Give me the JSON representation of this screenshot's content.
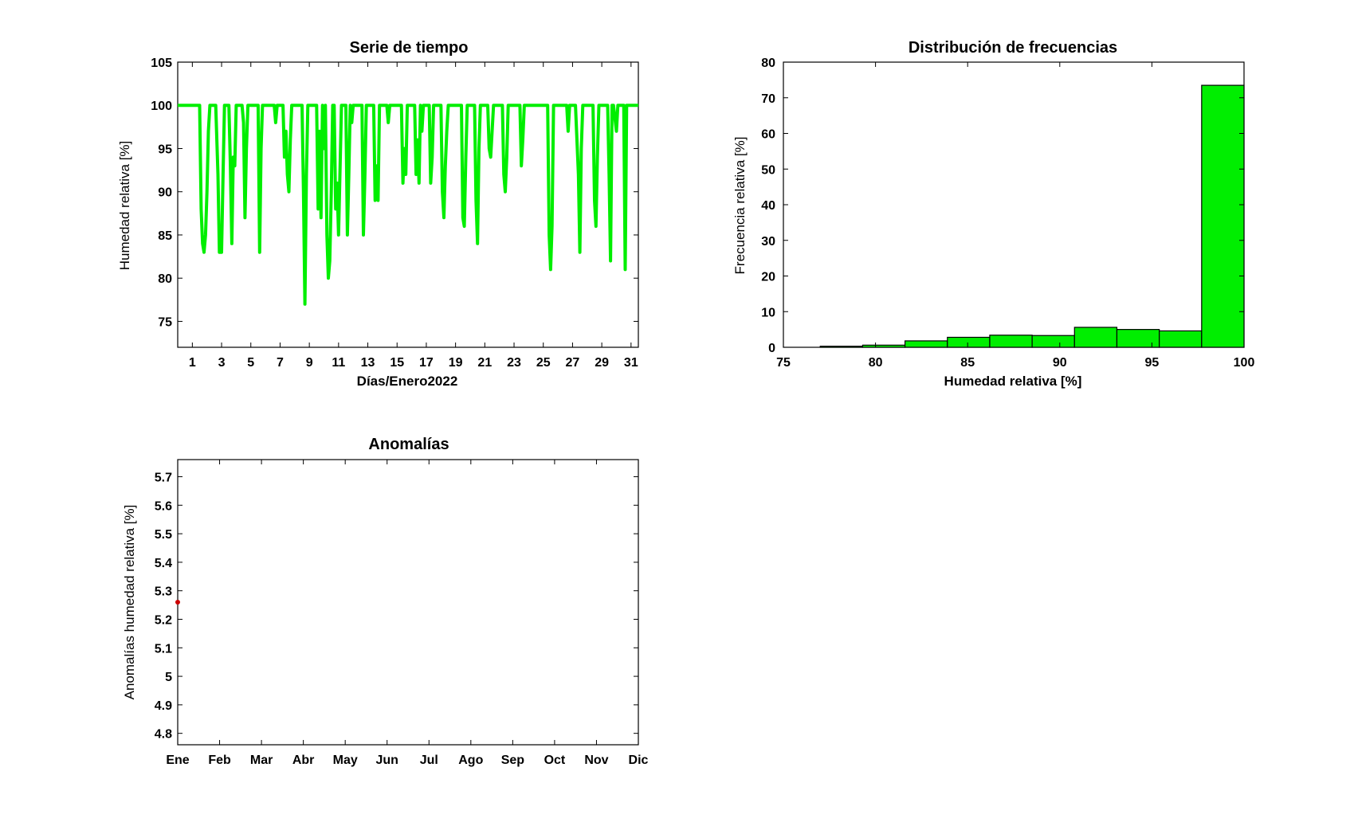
{
  "chart_data": [
    {
      "type": "line",
      "title": "Serie de tiempo",
      "xlabel": "Días/Enero2022",
      "ylabel": "Humedad relativa [%]",
      "xlim": [
        0,
        31.5
      ],
      "ylim": [
        72,
        105
      ],
      "xticks": [
        1,
        3,
        5,
        7,
        9,
        11,
        13,
        15,
        17,
        19,
        21,
        23,
        25,
        27,
        29,
        31
      ],
      "yticks": [
        75,
        80,
        85,
        90,
        95,
        100,
        105
      ],
      "color": "#00ee00",
      "x": [
        0,
        1.5,
        1.6,
        1.7,
        1.8,
        1.9,
        2.0,
        2.1,
        2.2,
        2.3,
        2.6,
        2.75,
        2.85,
        3.0,
        3.1,
        3.2,
        3.3,
        3.5,
        3.6,
        3.7,
        3.8,
        3.9,
        4.0,
        4.1,
        4.4,
        4.5,
        4.6,
        4.7,
        4.8,
        5.5,
        5.6,
        5.7,
        5.8,
        6.6,
        6.7,
        6.8,
        7.2,
        7.3,
        7.4,
        7.5,
        7.6,
        7.7,
        7.8,
        7.9,
        8.5,
        8.6,
        8.7,
        8.8,
        8.9,
        9.5,
        9.6,
        9.7,
        9.8,
        9.9,
        10.0,
        10.1,
        10.2,
        10.3,
        10.4,
        10.5,
        10.6,
        10.7,
        10.8,
        10.9,
        11.0,
        11.2,
        11.5,
        11.6,
        11.7,
        11.8,
        11.9,
        12.0,
        12.6,
        12.7,
        12.8,
        12.9,
        13.4,
        13.5,
        13.6,
        13.7,
        13.8,
        14.3,
        14.4,
        14.5,
        15.3,
        15.4,
        15.5,
        15.6,
        15.7,
        15.8,
        16.2,
        16.3,
        16.4,
        16.5,
        16.6,
        16.7,
        16.8,
        17.2,
        17.3,
        17.4,
        17.5,
        17.6,
        18.0,
        18.1,
        18.2,
        18.3,
        18.4,
        18.5,
        18.6,
        19.4,
        19.5,
        19.6,
        19.7,
        19.8,
        19.9,
        20.3,
        20.4,
        20.5,
        20.6,
        20.7,
        20.8,
        21.2,
        21.3,
        21.4,
        21.5,
        21.6,
        21.7,
        22.2,
        22.3,
        22.4,
        22.5,
        22.6,
        22.7,
        22.8,
        23.4,
        23.5,
        23.6,
        23.7,
        23.8,
        25.3,
        25.4,
        25.5,
        25.6,
        25.7,
        25.8,
        26.6,
        26.7,
        26.8,
        27.2,
        27.4,
        27.5,
        27.6,
        27.7,
        28.4,
        28.5,
        28.6,
        28.7,
        28.8,
        28.9,
        29.4,
        29.5,
        29.6,
        29.7,
        29.8,
        30.0,
        30.1,
        30.2,
        30.5,
        30.6,
        30.7,
        30.8,
        31.5
      ],
      "y": [
        100,
        100,
        88,
        84,
        83,
        85,
        90,
        97,
        100,
        100,
        100,
        92,
        83,
        83,
        92,
        100,
        100,
        100,
        93,
        84,
        94,
        93,
        100,
        100,
        100,
        98,
        87,
        95,
        100,
        100,
        83,
        95,
        100,
        100,
        98,
        100,
        100,
        94,
        97,
        92,
        90,
        96,
        100,
        100,
        100,
        90,
        77,
        92,
        100,
        100,
        88,
        97,
        87,
        100,
        95,
        100,
        85,
        80,
        82,
        90,
        100,
        100,
        88,
        91,
        85,
        100,
        100,
        85,
        92,
        100,
        98,
        100,
        100,
        85,
        92,
        100,
        100,
        89,
        93,
        89,
        100,
        100,
        98,
        100,
        100,
        91,
        95,
        92,
        100,
        100,
        100,
        92,
        96,
        91,
        100,
        97,
        100,
        100,
        91,
        94,
        100,
        100,
        100,
        90,
        87,
        93,
        97,
        100,
        100,
        100,
        87,
        86,
        94,
        100,
        100,
        100,
        89,
        84,
        95,
        100,
        100,
        100,
        95,
        94,
        97,
        100,
        100,
        100,
        92,
        90,
        94,
        100,
        100,
        100,
        100,
        93,
        96,
        100,
        100,
        100,
        85,
        81,
        86,
        100,
        100,
        100,
        97,
        100,
        100,
        92,
        83,
        95,
        100,
        100,
        89,
        86,
        94,
        100,
        100,
        100,
        92,
        82,
        100,
        100,
        97,
        100,
        100,
        100,
        81,
        100,
        100,
        100
      ]
    },
    {
      "type": "bar",
      "title": "Distribución de frecuencias",
      "xlabel": "Humedad relativa [%]",
      "ylabel": "Frecuencia relativa [%]",
      "xlim": [
        75,
        100
      ],
      "ylim": [
        0,
        80
      ],
      "xticks": [
        75,
        80,
        85,
        90,
        95,
        100
      ],
      "yticks": [
        0,
        10,
        20,
        30,
        40,
        50,
        60,
        70,
        80
      ],
      "color": "#00ee00",
      "bin_edges": [
        77.0,
        79.3,
        81.6,
        83.9,
        86.2,
        88.5,
        90.8,
        93.1,
        95.4,
        97.7,
        100.0
      ],
      "values": [
        0.3,
        0.6,
        1.8,
        2.8,
        3.4,
        3.3,
        5.6,
        5.0,
        4.6,
        73.5
      ]
    },
    {
      "type": "scatter",
      "title": "Anomalías",
      "xlabel": "",
      "ylabel": "Anomalías humedad relativa [%]",
      "categories": [
        "Ene",
        "Feb",
        "Mar",
        "Abr",
        "May",
        "Jun",
        "Jul",
        "Ago",
        "Sep",
        "Oct",
        "Nov",
        "Dic"
      ],
      "ylim": [
        4.76,
        5.76
      ],
      "yticks": [
        4.8,
        4.9,
        5,
        5.1,
        5.2,
        5.3,
        5.4,
        5.5,
        5.6,
        5.7
      ],
      "color": "#cc0000",
      "points": [
        {
          "month": 1,
          "value": 5.26
        }
      ]
    }
  ]
}
